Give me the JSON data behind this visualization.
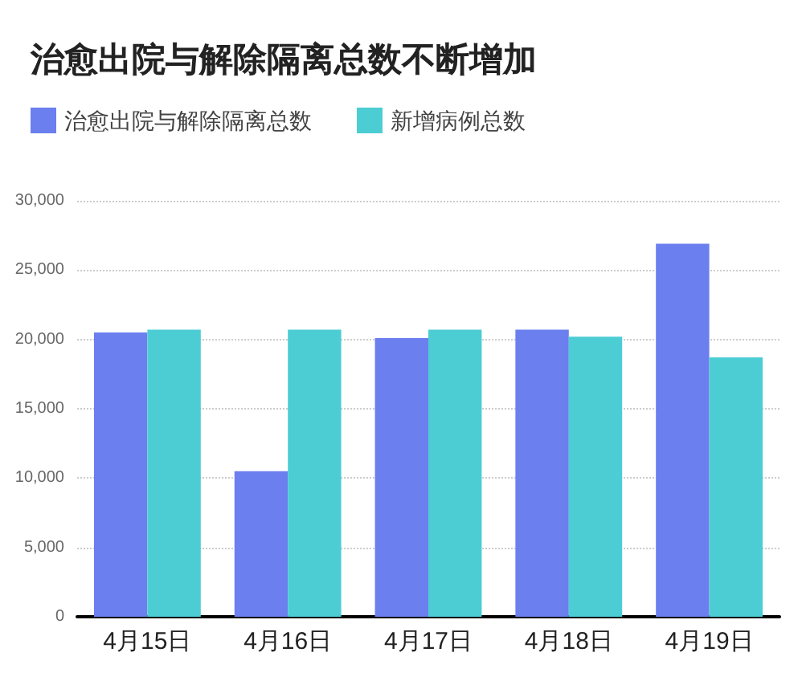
{
  "chart_data": {
    "type": "bar",
    "title": "治愈出院与解除隔离总数不断增加",
    "categories": [
      "4月15日",
      "4月16日",
      "4月17日",
      "4月18日",
      "4月19日"
    ],
    "series": [
      {
        "name": "治愈出院与解除隔离总数",
        "color": "#6b7fef",
        "values": [
          20500,
          10500,
          20100,
          20700,
          26900
        ]
      },
      {
        "name": "新增病例总数",
        "color": "#4ccdd4",
        "values": [
          20700,
          20700,
          20700,
          20200,
          18700
        ]
      }
    ],
    "ylim": [
      0,
      30000
    ],
    "yticks": [
      0,
      {
        "value": 5000,
        "label": "5,000"
      },
      {
        "value": 10000,
        "label": "10,000"
      },
      {
        "value": 15000,
        "label": "15,000"
      },
      {
        "value": 20000,
        "label": "20,000"
      },
      {
        "value": 25000,
        "label": "25,000"
      },
      {
        "value": 30000,
        "label": "30,000"
      }
    ],
    "grid": "y",
    "legend": "top left"
  }
}
